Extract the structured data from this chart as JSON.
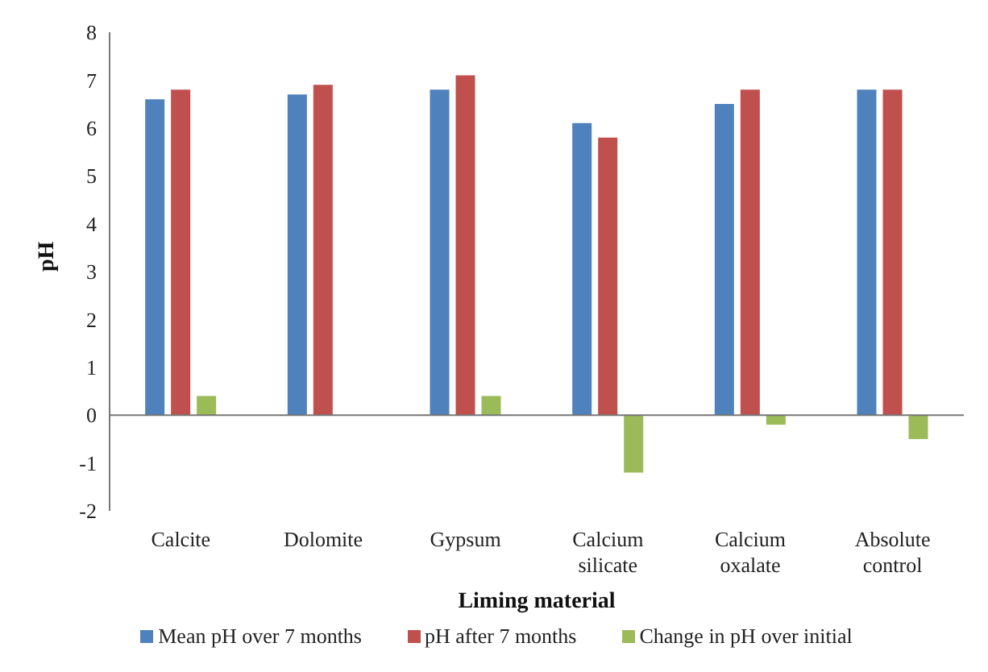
{
  "chart_data": {
    "type": "bar",
    "xlabel": "Liming material",
    "ylabel": "pH",
    "categories": [
      "Calcite",
      "Dolomite",
      "Gypsum",
      "Calcium silicate",
      "Calcium oxalate",
      "Absolute control"
    ],
    "series": [
      {
        "name": "Mean pH over 7 months",
        "color": "#4f81bd",
        "values": [
          6.6,
          6.7,
          6.8,
          6.1,
          6.5,
          6.8
        ]
      },
      {
        "name": "pH after 7 months",
        "color": "#c0504d",
        "values": [
          6.8,
          6.9,
          7.1,
          5.8,
          6.8,
          6.8
        ]
      },
      {
        "name": "Change in pH over initial",
        "color": "#9bbb59",
        "values": [
          0.4,
          0,
          0.4,
          -1.2,
          -0.2,
          -0.5
        ]
      }
    ],
    "ylim": [
      -2,
      8
    ],
    "yticks": [
      -2,
      -1,
      0,
      1,
      2,
      3,
      4,
      5,
      6,
      7,
      8
    ],
    "legend": "bottom"
  }
}
